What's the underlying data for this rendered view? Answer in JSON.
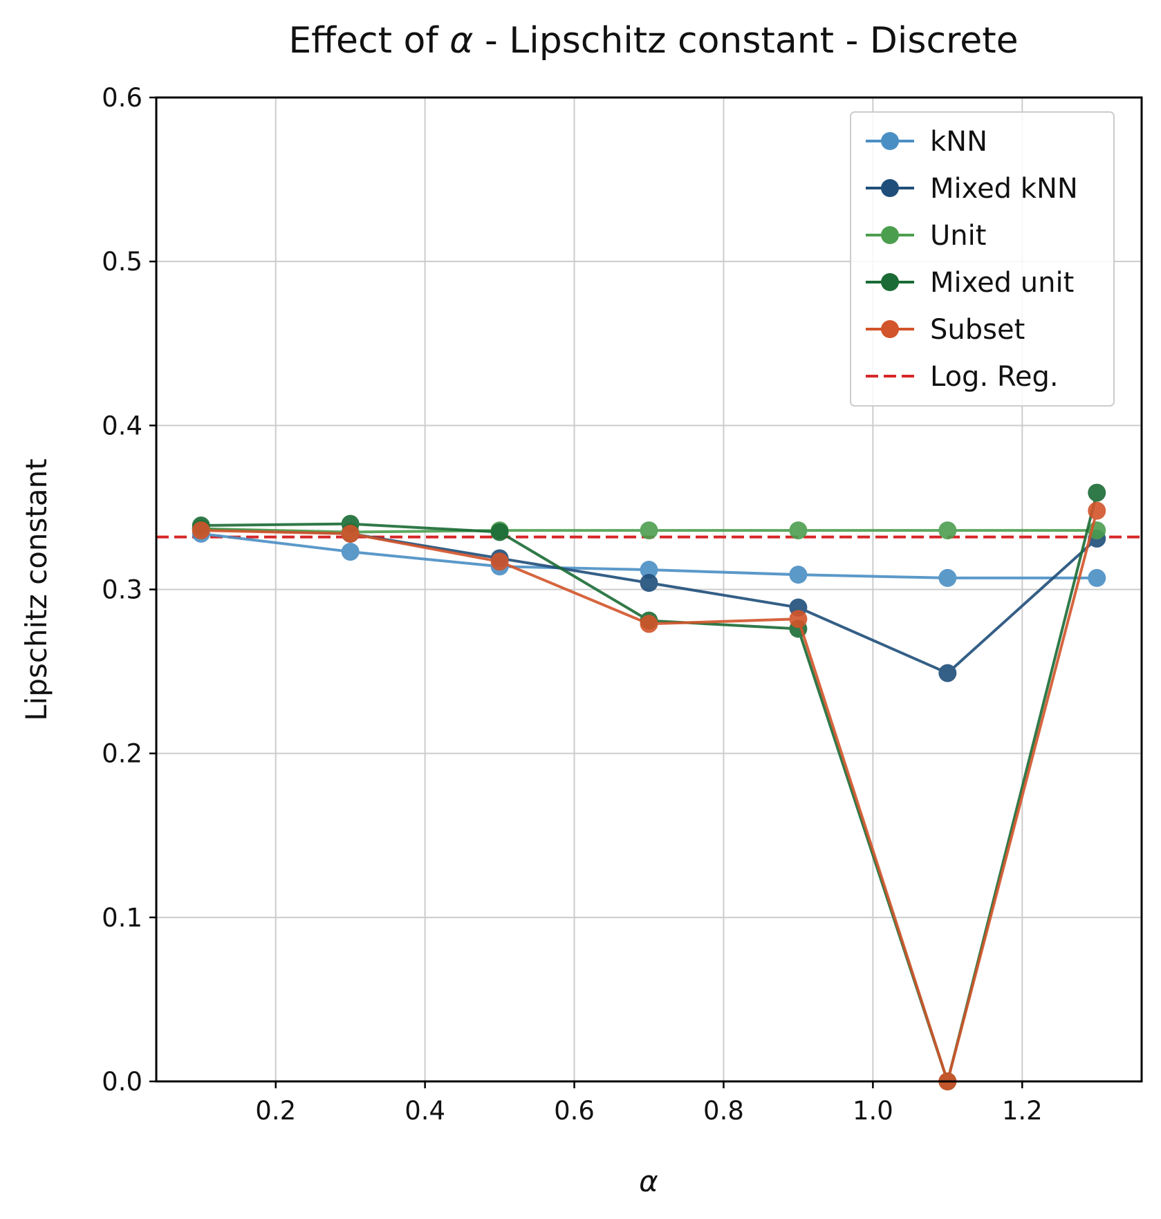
{
  "chart_data": {
    "type": "line",
    "title_prefix": "Effect of ",
    "title_symbol": "α",
    "title_suffix": " - Lipschitz constant - Discrete",
    "xlabel": "α",
    "ylabel": "Lipschitz constant",
    "xlim": [
      0.04,
      1.36
    ],
    "ylim": [
      0.0,
      0.6
    ],
    "xticks": [
      "0.2",
      "0.4",
      "0.6",
      "0.8",
      "1.0",
      "1.2"
    ],
    "yticks": [
      "0.0",
      "0.1",
      "0.2",
      "0.3",
      "0.4",
      "0.5",
      "0.6"
    ],
    "grid": true,
    "legend_position": "top-right",
    "x": [
      0.1,
      0.3,
      0.5,
      0.7,
      0.9,
      1.1,
      1.3
    ],
    "series": [
      {
        "name": "kNN",
        "color": "#4a8fc4",
        "values": [
          0.334,
          0.323,
          0.314,
          0.312,
          0.309,
          0.307,
          0.307
        ]
      },
      {
        "name": "Mixed kNN",
        "color": "#1f4e7a",
        "values": [
          0.337,
          0.334,
          0.319,
          0.304,
          0.289,
          0.249,
          0.331
        ]
      },
      {
        "name": "Unit",
        "color": "#4c9e4f",
        "values": [
          0.337,
          0.335,
          0.336,
          0.336,
          0.336,
          0.336,
          0.336
        ]
      },
      {
        "name": "Mixed unit",
        "color": "#1a6b35",
        "values": [
          0.339,
          0.34,
          0.335,
          0.281,
          0.276,
          0.0,
          0.359
        ]
      },
      {
        "name": "Subset",
        "color": "#d2542a",
        "values": [
          0.336,
          0.334,
          0.317,
          0.279,
          0.282,
          0.0,
          0.348
        ]
      }
    ],
    "reference_line": {
      "name": "Log. Reg.",
      "color": "#d62728",
      "value": 0.332
    }
  }
}
